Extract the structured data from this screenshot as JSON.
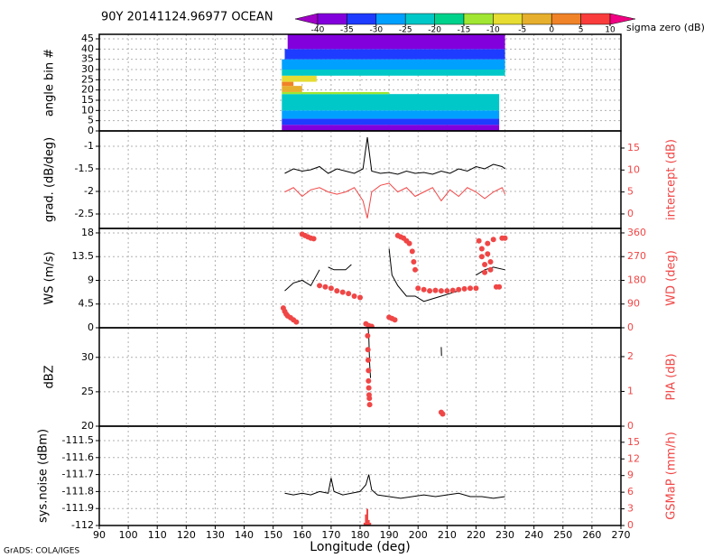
{
  "chart_data": [
    {
      "type": "heatmap",
      "title": "90Y 20141124.96977 OCEAN",
      "ylabel": "angle bin #",
      "ylim": [
        0,
        47.2
      ],
      "yticks": [
        0,
        5,
        10,
        15,
        20,
        25,
        30,
        35,
        40,
        45
      ],
      "grid": true,
      "colorbar": {
        "levels": [
          -40,
          -35,
          -30,
          -25,
          -20,
          -15,
          -10,
          -5,
          0,
          5,
          10
        ],
        "colors": [
          "#a000c8",
          "#8200dc",
          "#1e3cff",
          "#00a0ff",
          "#00c8c8",
          "#00d28c",
          "#a0e632",
          "#e6dc32",
          "#e6af2d",
          "#f08228",
          "#fa3c3c",
          "#f00082"
        ],
        "label": "sigma zero (dB)"
      },
      "cells": [
        {
          "x": [
            153,
            228
          ],
          "bins": [
            0,
            3
          ],
          "value": -38
        },
        {
          "x": [
            153,
            228
          ],
          "bins": [
            3,
            6
          ],
          "value": -33
        },
        {
          "x": [
            153,
            228
          ],
          "bins": [
            6,
            10
          ],
          "value": -28
        },
        {
          "x": [
            153,
            228
          ],
          "bins": [
            10,
            18
          ],
          "value": -23
        },
        {
          "x": [
            153,
            190
          ],
          "bins": [
            18,
            19
          ],
          "value": -13
        },
        {
          "x": [
            153,
            160
          ],
          "bins": [
            19,
            22
          ],
          "value": -3
        },
        {
          "x": [
            153,
            157
          ],
          "bins": [
            22,
            24
          ],
          "value": 2
        },
        {
          "x": [
            153,
            165
          ],
          "bins": [
            24,
            27
          ],
          "value": -8
        },
        {
          "x": [
            153,
            230
          ],
          "bins": [
            27,
            30
          ],
          "value": -23
        },
        {
          "x": [
            153,
            230
          ],
          "bins": [
            30,
            35
          ],
          "value": -28
        },
        {
          "x": [
            154,
            230
          ],
          "bins": [
            35,
            40
          ],
          "value": -33
        },
        {
          "x": [
            155,
            230
          ],
          "bins": [
            40,
            47
          ],
          "value": -38
        }
      ]
    },
    {
      "type": "line",
      "ylabel": "grad. (dB/deg)",
      "y2label": "intercept (dB)",
      "ylim": [
        -2.82,
        -0.66
      ],
      "yticks": [
        -2.5,
        -2,
        -1.5,
        -1
      ],
      "y2lim": [
        -3.3,
        18.9
      ],
      "y2ticks": [
        0,
        5,
        10,
        15
      ],
      "grid": true,
      "series": [
        {
          "type": "line",
          "color": "#f04646",
          "axis": "y2",
          "x": [
            154,
            157,
            160,
            163,
            166,
            169,
            172,
            175,
            178,
            181,
            182.5,
            184,
            187,
            190,
            193,
            196,
            199,
            202,
            205,
            208,
            211,
            214,
            217,
            220,
            223,
            226,
            229,
            230
          ],
          "values": [
            5,
            6,
            4,
            5.5,
            6,
            5,
            4.5,
            5,
            6,
            3,
            -1,
            5,
            6.5,
            7,
            5,
            6,
            4,
            5,
            6,
            3,
            5.5,
            4,
            6,
            5,
            3.5,
            5,
            6,
            4.5
          ]
        },
        {
          "type": "line",
          "color": "#000000",
          "x": [
            154,
            157,
            160,
            163,
            166,
            169,
            172,
            175,
            178,
            181,
            182.5,
            184,
            187,
            190,
            193,
            196,
            199,
            202,
            205,
            208,
            211,
            214,
            217,
            220,
            223,
            226,
            229,
            230
          ],
          "values": [
            -1.6,
            -1.5,
            -1.55,
            -1.52,
            -1.45,
            -1.6,
            -1.5,
            -1.55,
            -1.6,
            -1.5,
            -0.8,
            -1.55,
            -1.6,
            -1.58,
            -1.62,
            -1.55,
            -1.6,
            -1.58,
            -1.62,
            -1.55,
            -1.6,
            -1.5,
            -1.55,
            -1.45,
            -1.5,
            -1.4,
            -1.45,
            -1.5
          ]
        }
      ]
    },
    {
      "type": "line",
      "ylabel": "WS (m/s)",
      "y2label": "WD (deg)",
      "ylim": [
        0,
        18.85
      ],
      "yticks": [
        0,
        4.5,
        9,
        13.5,
        18
      ],
      "y2lim": [
        0,
        377
      ],
      "y2ticks": [
        0,
        90,
        180,
        270,
        360
      ],
      "grid": true,
      "series": [
        {
          "type": "line",
          "color": "#000000",
          "x": [
            154,
            157,
            160,
            163,
            166,
            167,
            169,
            171,
            173,
            175,
            177,
            178,
            183,
            190,
            191,
            193,
            196,
            199,
            202,
            205,
            208,
            211,
            214,
            217,
            220,
            223,
            226,
            230
          ],
          "values": [
            7,
            8.5,
            9,
            8,
            11,
            null,
            11.5,
            11,
            11,
            11,
            12,
            null,
            null,
            15,
            10,
            8,
            6,
            6,
            5,
            5.5,
            6,
            6.5,
            7,
            null,
            10,
            11,
            11.5,
            11
          ]
        },
        {
          "type": "scatter",
          "color": "#f04646",
          "axis": "y2",
          "x": [
            153.5,
            154,
            154.5,
            155,
            156,
            157,
            158,
            160,
            161,
            162,
            163,
            164,
            166,
            168,
            170,
            172,
            174,
            176,
            178,
            180,
            182,
            183,
            184,
            190,
            191,
            192,
            193,
            194,
            195,
            196,
            197,
            198,
            198.5,
            199,
            200,
            202,
            204,
            206,
            208,
            210,
            212,
            214,
            216,
            218,
            220,
            221,
            222,
            222,
            223,
            223,
            224,
            224,
            225,
            225,
            226,
            227,
            228,
            229,
            230
          ],
          "values": [
            75,
            62,
            52,
            45,
            38,
            30,
            22,
            355,
            350,
            345,
            340,
            338,
            160,
            155,
            150,
            140,
            135,
            130,
            120,
            115,
            15,
            8,
            5,
            40,
            35,
            30,
            350,
            345,
            340,
            330,
            320,
            290,
            250,
            220,
            150,
            145,
            140,
            142,
            140,
            140,
            142,
            145,
            148,
            150,
            150,
            330,
            300,
            270,
            240,
            210,
            320,
            280,
            250,
            220,
            335,
            155,
            155,
            340,
            340
          ]
        }
      ]
    },
    {
      "type": "line",
      "ylabel": "dBZ",
      "y2label": "PIA (dB)",
      "ylim": [
        20,
        34.3
      ],
      "yticks": [
        20,
        25,
        30
      ],
      "y2lim": [
        0,
        2.83
      ],
      "y2ticks": [
        0,
        1,
        2
      ],
      "grid": true,
      "series": [
        {
          "type": "line",
          "color": "#000000",
          "x": [
            182.8,
            183,
            183.3,
            183.6,
            195,
            208,
            208.1
          ],
          "values": [
            34.2,
            33,
            29,
            27,
            null,
            31.5,
            30.2
          ]
        },
        {
          "type": "scatter",
          "color": "#f04646",
          "axis": "y2",
          "x": [
            182.6,
            182.7,
            182.8,
            182.9,
            182.9,
            183,
            183.1,
            183.2,
            183.3,
            208,
            208.5
          ],
          "values": [
            2.6,
            2.2,
            1.9,
            1.6,
            1.3,
            1.1,
            0.9,
            0.8,
            0.62,
            0.4,
            0.35
          ]
        }
      ]
    },
    {
      "type": "line",
      "ylabel": "sys.noise (dBm)",
      "y2label": "GSMaP (mm/h)",
      "xlabel": "Longitude (deg)",
      "ylim": [
        -112,
        -111.415
      ],
      "yticks": [
        -112,
        -111.9,
        -111.8,
        -111.7,
        -111.6,
        -111.5
      ],
      "y2lim": [
        0,
        17.9
      ],
      "y2ticks": [
        0,
        3,
        6,
        9,
        12,
        15
      ],
      "xlim": [
        90,
        270
      ],
      "xticks": [
        90,
        100,
        110,
        120,
        130,
        140,
        150,
        160,
        170,
        180,
        190,
        200,
        210,
        220,
        230,
        240,
        250,
        260,
        270
      ],
      "grid": true,
      "series": [
        {
          "type": "bar",
          "color": "#f04646",
          "axis": "y2",
          "x": [
            181.5,
            182,
            182.5,
            183,
            183.5
          ],
          "values": [
            0.5,
            2,
            3,
            1,
            0.5
          ]
        },
        {
          "type": "line",
          "color": "#000000",
          "x": [
            154,
            157,
            160,
            163,
            166,
            169,
            170,
            171,
            174,
            177,
            180,
            182,
            183,
            184,
            186,
            190,
            194,
            198,
            202,
            206,
            210,
            214,
            218,
            222,
            226,
            230
          ],
          "values": [
            -111.81,
            -111.82,
            -111.81,
            -111.82,
            -111.8,
            -111.81,
            -111.72,
            -111.8,
            -111.82,
            -111.81,
            -111.8,
            -111.76,
            -111.7,
            -111.79,
            -111.82,
            -111.83,
            -111.84,
            -111.83,
            -111.82,
            -111.83,
            -111.82,
            -111.81,
            -111.83,
            -111.83,
            -111.84,
            -111.83
          ]
        }
      ]
    }
  ],
  "footer": "GrADS: COLA/IGES"
}
